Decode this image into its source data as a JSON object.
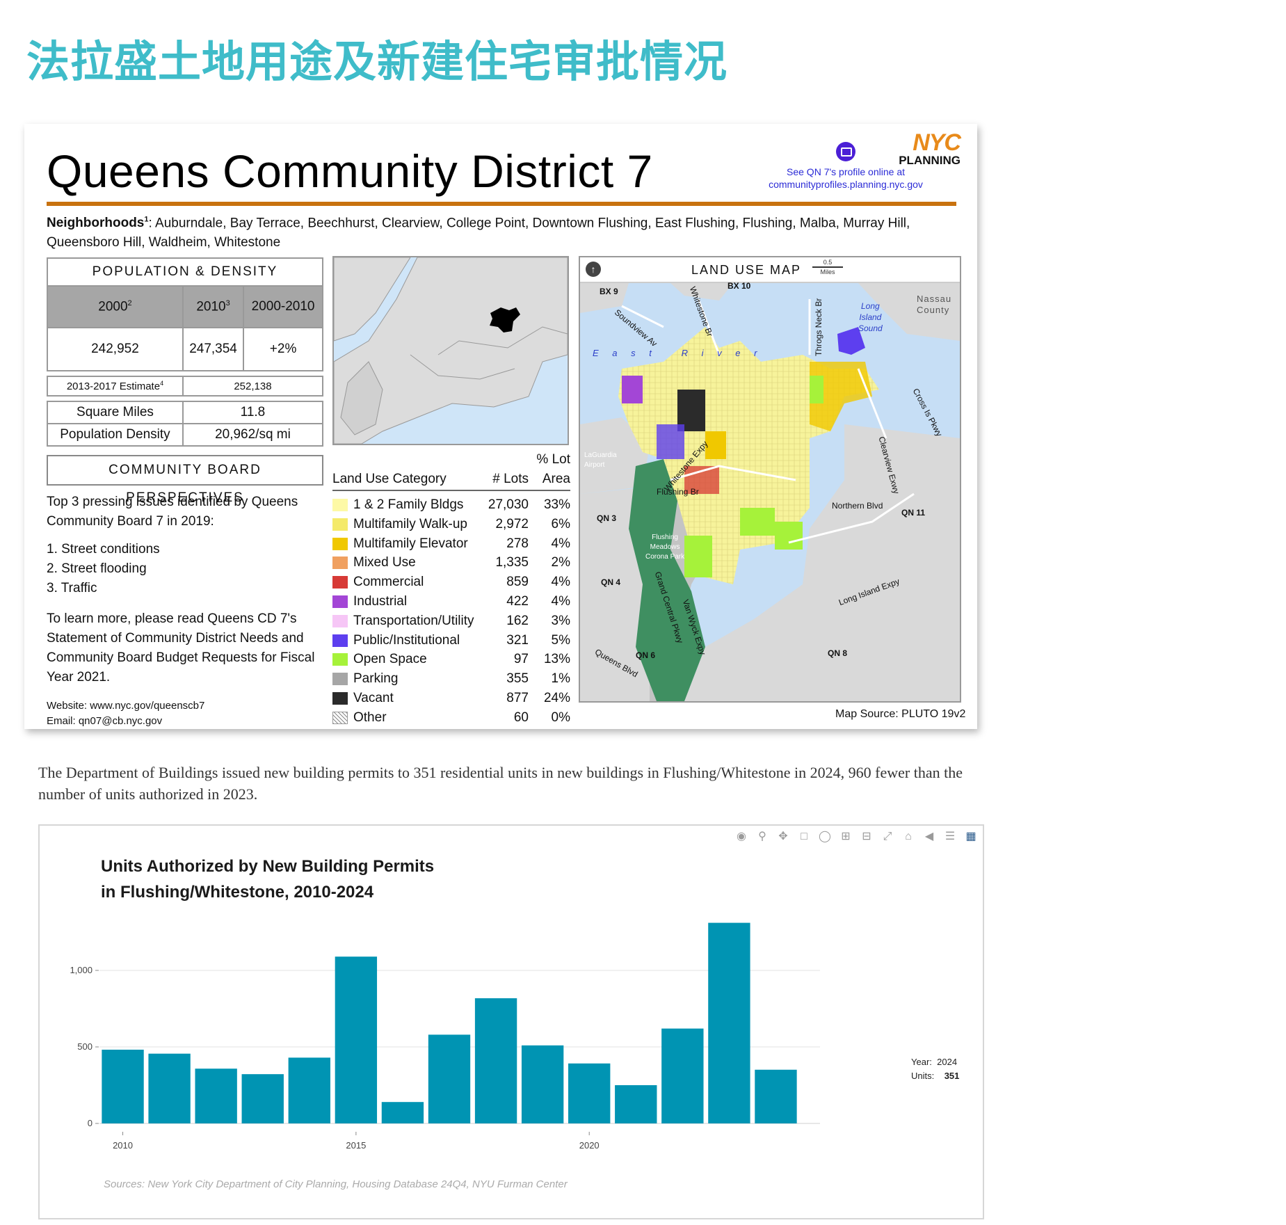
{
  "page_title": "法拉盛土地用途及新建住宅审批情况",
  "profile": {
    "title": "Queens Community District 7",
    "link_line1": "See QN 7's profile online at",
    "link_line2": "communityprofiles.planning.nyc.gov",
    "logo_nyc": "NYC",
    "logo_planning": "PLANNING",
    "neighborhoods_label": "Neighborhoods",
    "neighborhoods_sup": "1",
    "neighborhoods_text": ": Auburndale, Bay Terrace, Beechhurst, Clearview, College Point, Downtown Flushing, East Flushing, Flushing, Malba, Murray Hill, Queensboro Hill, Waldheim, Whitestone",
    "population": {
      "heading": "POPULATION & DENSITY",
      "col1": "2000",
      "col1_sup": "2",
      "col2": "2010",
      "col2_sup": "3",
      "col3": "2000-2010",
      "val1": "242,952",
      "val2": "247,354",
      "val3": "+2%",
      "estimate_label": "2013-2017 Estimate",
      "estimate_sup": "4",
      "estimate_value": "252,138",
      "sqmi_label": "Square Miles",
      "sqmi_value": "11.8",
      "density_label": "Population Density",
      "density_value": "20,962/sq mi"
    },
    "community_board": {
      "heading": "COMMUNITY BOARD PERSPECTIVES",
      "intro": "Top 3 pressing issues identified by Queens Community Board 7 in 2019:",
      "issues": [
        "1. Street conditions",
        "2. Street flooding",
        "3. Traffic"
      ],
      "learn_more": "To learn more, please read Queens CD 7's Statement of Community District Needs and Community Board Budget Requests for Fiscal Year 2021.",
      "website": "Website: www.nyc.gov/queenscb7",
      "email": "Email: qn07@cb.nyc.gov"
    },
    "land_use": {
      "col_category": "Land Use Category",
      "col_lots": "# Lots",
      "col_area_line1": "% Lot",
      "col_area_line2": "Area",
      "rows": [
        {
          "name": "1 & 2 Family Bldgs",
          "lots": "27,030",
          "area": "33%",
          "color": "#fdf9a6"
        },
        {
          "name": "Multifamily Walk-up",
          "lots": "2,972",
          "area": "6%",
          "color": "#f4ea6a"
        },
        {
          "name": "Multifamily Elevator",
          "lots": "278",
          "area": "4%",
          "color": "#f0c800"
        },
        {
          "name": "Mixed Use",
          "lots": "1,335",
          "area": "2%",
          "color": "#f0a060"
        },
        {
          "name": "Commercial",
          "lots": "859",
          "area": "4%",
          "color": "#d73a36"
        },
        {
          "name": "Industrial",
          "lots": "422",
          "area": "4%",
          "color": "#a346d6"
        },
        {
          "name": "Transportation/Utility",
          "lots": "162",
          "area": "3%",
          "color": "#f6c6f6"
        },
        {
          "name": "Public/Institutional",
          "lots": "321",
          "area": "5%",
          "color": "#5d3fef"
        },
        {
          "name": "Open Space",
          "lots": "97",
          "area": "13%",
          "color": "#a6f23a"
        },
        {
          "name": "Parking",
          "lots": "355",
          "area": "1%",
          "color": "#a6a6a6"
        },
        {
          "name": "Vacant",
          "lots": "877",
          "area": "24%",
          "color": "#2b2b2b"
        },
        {
          "name": "Other",
          "lots": "60",
          "area": "0%",
          "color": "hatch"
        }
      ]
    },
    "map": {
      "heading": "LAND USE MAP",
      "scale_value": "0.5",
      "scale_unit": "Miles",
      "source": "Map Source: PLUTO 19v2",
      "labels": {
        "bx9": "BX 9",
        "bx10": "BX 10",
        "soundview": "Soundview Av",
        "whitestone_br": "Whitestone Br",
        "throgs": "Throgs Neck Br",
        "long_island_sound_1": "Long",
        "long_island_sound_2": "Island",
        "long_island_sound_3": "Sound",
        "nassau_1": "Nassau",
        "nassau_2": "County",
        "east_river": "E a s t   R i v e r",
        "laguardia_1": "LaGuardia",
        "laguardia_2": "Airport",
        "whitestone_expy": "Whitestone Expy",
        "flushing_br": "Flushing Br",
        "cross_is": "Cross Is Pkwy",
        "clearview": "Clearview Exwy",
        "northern": "Northern Blvd",
        "qn3": "QN 3",
        "qn4": "QN 4",
        "qn6": "QN 6",
        "qn8": "QN 8",
        "qn11": "QN 11",
        "fmcp_1": "Flushing",
        "fmcp_2": "Meadows",
        "fmcp_3": "Corona Park",
        "gcp": "Grand Central Pkwy",
        "van_wyck": "Van Wyck Expy",
        "lie": "Long Island Expy",
        "queens_blvd": "Queens Blvd"
      }
    }
  },
  "caption": "The Department of Buildings issued new building permits to 351 residential units in new buildings in Flushing/Whitestone in 2024, 960 fewer than the number of units authorized in 2023.",
  "chart": {
    "title_line1": "Units Authorized by New Building Permits",
    "title_line2": "in Flushing/Whitestone, 2010-2024",
    "sources": "Sources: New York City Department of City Planning, Housing Database 24Q4, NYU Furman Center",
    "hover_year_label": "Year:",
    "hover_year_value": "2024",
    "hover_units_label": "Units:",
    "hover_units_value": "351",
    "bar_color": "#0094b3",
    "toolbar_icons": [
      "camera-icon",
      "zoom-icon",
      "pan-icon",
      "box-select-icon",
      "lasso-icon",
      "zoom-in-icon",
      "zoom-out-icon",
      "autoscale-icon",
      "reset-axes-icon",
      "hover-closest-icon",
      "hover-compare-icon",
      "plotly-logo-icon"
    ]
  },
  "chart_data": {
    "type": "bar",
    "categories": [
      "2010",
      "2011",
      "2012",
      "2013",
      "2014",
      "2015",
      "2016",
      "2017",
      "2018",
      "2019",
      "2020",
      "2021",
      "2022",
      "2023",
      "2024"
    ],
    "values": [
      482,
      456,
      358,
      322,
      430,
      1090,
      140,
      580,
      818,
      510,
      392,
      250,
      620,
      1311,
      351
    ],
    "title": "Units Authorized by New Building Permits in Flushing/Whitestone, 2010-2024",
    "xlabel": "",
    "ylabel": "",
    "ylim": [
      0,
      1400
    ],
    "yticks": [
      0,
      500,
      1000
    ],
    "ytick_labels": [
      "0",
      "500",
      "1,000"
    ],
    "xticks": [
      2010,
      2015,
      2020
    ],
    "xtick_labels": [
      "2010",
      "2015",
      "2020"
    ],
    "grid": true,
    "legend": "none"
  }
}
